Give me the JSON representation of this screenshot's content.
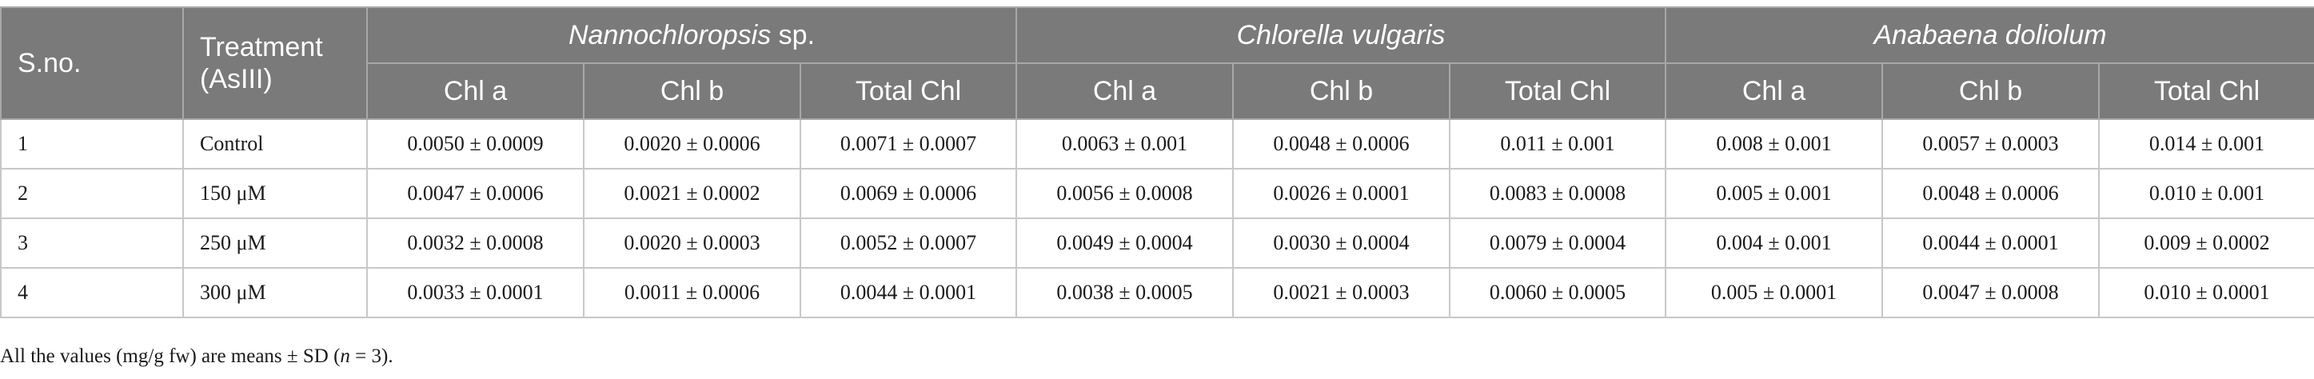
{
  "table": {
    "header": {
      "sno": "S.no.",
      "treatment_line1": "Treatment",
      "treatment_line2": "(AsIII)",
      "groups": [
        {
          "name": "Nannochloropsis",
          "suffix": " sp."
        },
        {
          "name": "Chlorella vulgaris",
          "suffix": ""
        },
        {
          "name": "Anabaena doliolum",
          "suffix": ""
        }
      ],
      "subcolumns": [
        "Chl a",
        "Chl b",
        "Total Chl",
        "Chl a",
        "Chl b",
        "Total Chl",
        "Chl a",
        "Chl b",
        "Total Chl"
      ]
    },
    "rows": [
      {
        "sno": "1",
        "treatment": "Control",
        "values": [
          "0.0050 ± 0.0009",
          "0.0020 ± 0.0006",
          "0.0071 ± 0.0007",
          "0.0063 ± 0.001",
          "0.0048 ± 0.0006",
          "0.011 ± 0.001",
          "0.008 ± 0.001",
          "0.0057 ± 0.0003",
          "0.014 ± 0.001"
        ]
      },
      {
        "sno": "2",
        "treatment": "150 μM",
        "values": [
          "0.0047 ± 0.0006",
          "0.0021 ± 0.0002",
          "0.0069 ± 0.0006",
          "0.0056 ± 0.0008",
          "0.0026 ± 0.0001",
          "0.0083 ± 0.0008",
          "0.005 ± 0.001",
          "0.0048 ± 0.0006",
          "0.010 ± 0.001"
        ]
      },
      {
        "sno": "3",
        "treatment": "250 μM",
        "values": [
          "0.0032 ± 0.0008",
          "0.0020 ± 0.0003",
          "0.0052 ± 0.0007",
          "0.0049 ± 0.0004",
          "0.0030 ± 0.0004",
          "0.0079 ± 0.0004",
          "0.004 ± 0.001",
          "0.0044 ± 0.0001",
          "0.009 ± 0.0002"
        ]
      },
      {
        "sno": "4",
        "treatment": "300 μM",
        "values": [
          "0.0033 ± 0.0001",
          "0.0011 ± 0.0006",
          "0.0044 ± 0.0001",
          "0.0038 ± 0.0005",
          "0.0021 ± 0.0003",
          "0.0060 ± 0.0005",
          "0.005 ± 0.0001",
          "0.0047 ± 0.0008",
          "0.010 ± 0.0001"
        ]
      }
    ]
  },
  "footnote": {
    "prefix": "All the values (mg/g fw) are means ± SD (",
    "var": "n",
    "suffix": " = 3)."
  },
  "colors": {
    "header_bg": "#7a7a7a",
    "header_text": "#ffffff",
    "border": "#c8c8c8"
  }
}
